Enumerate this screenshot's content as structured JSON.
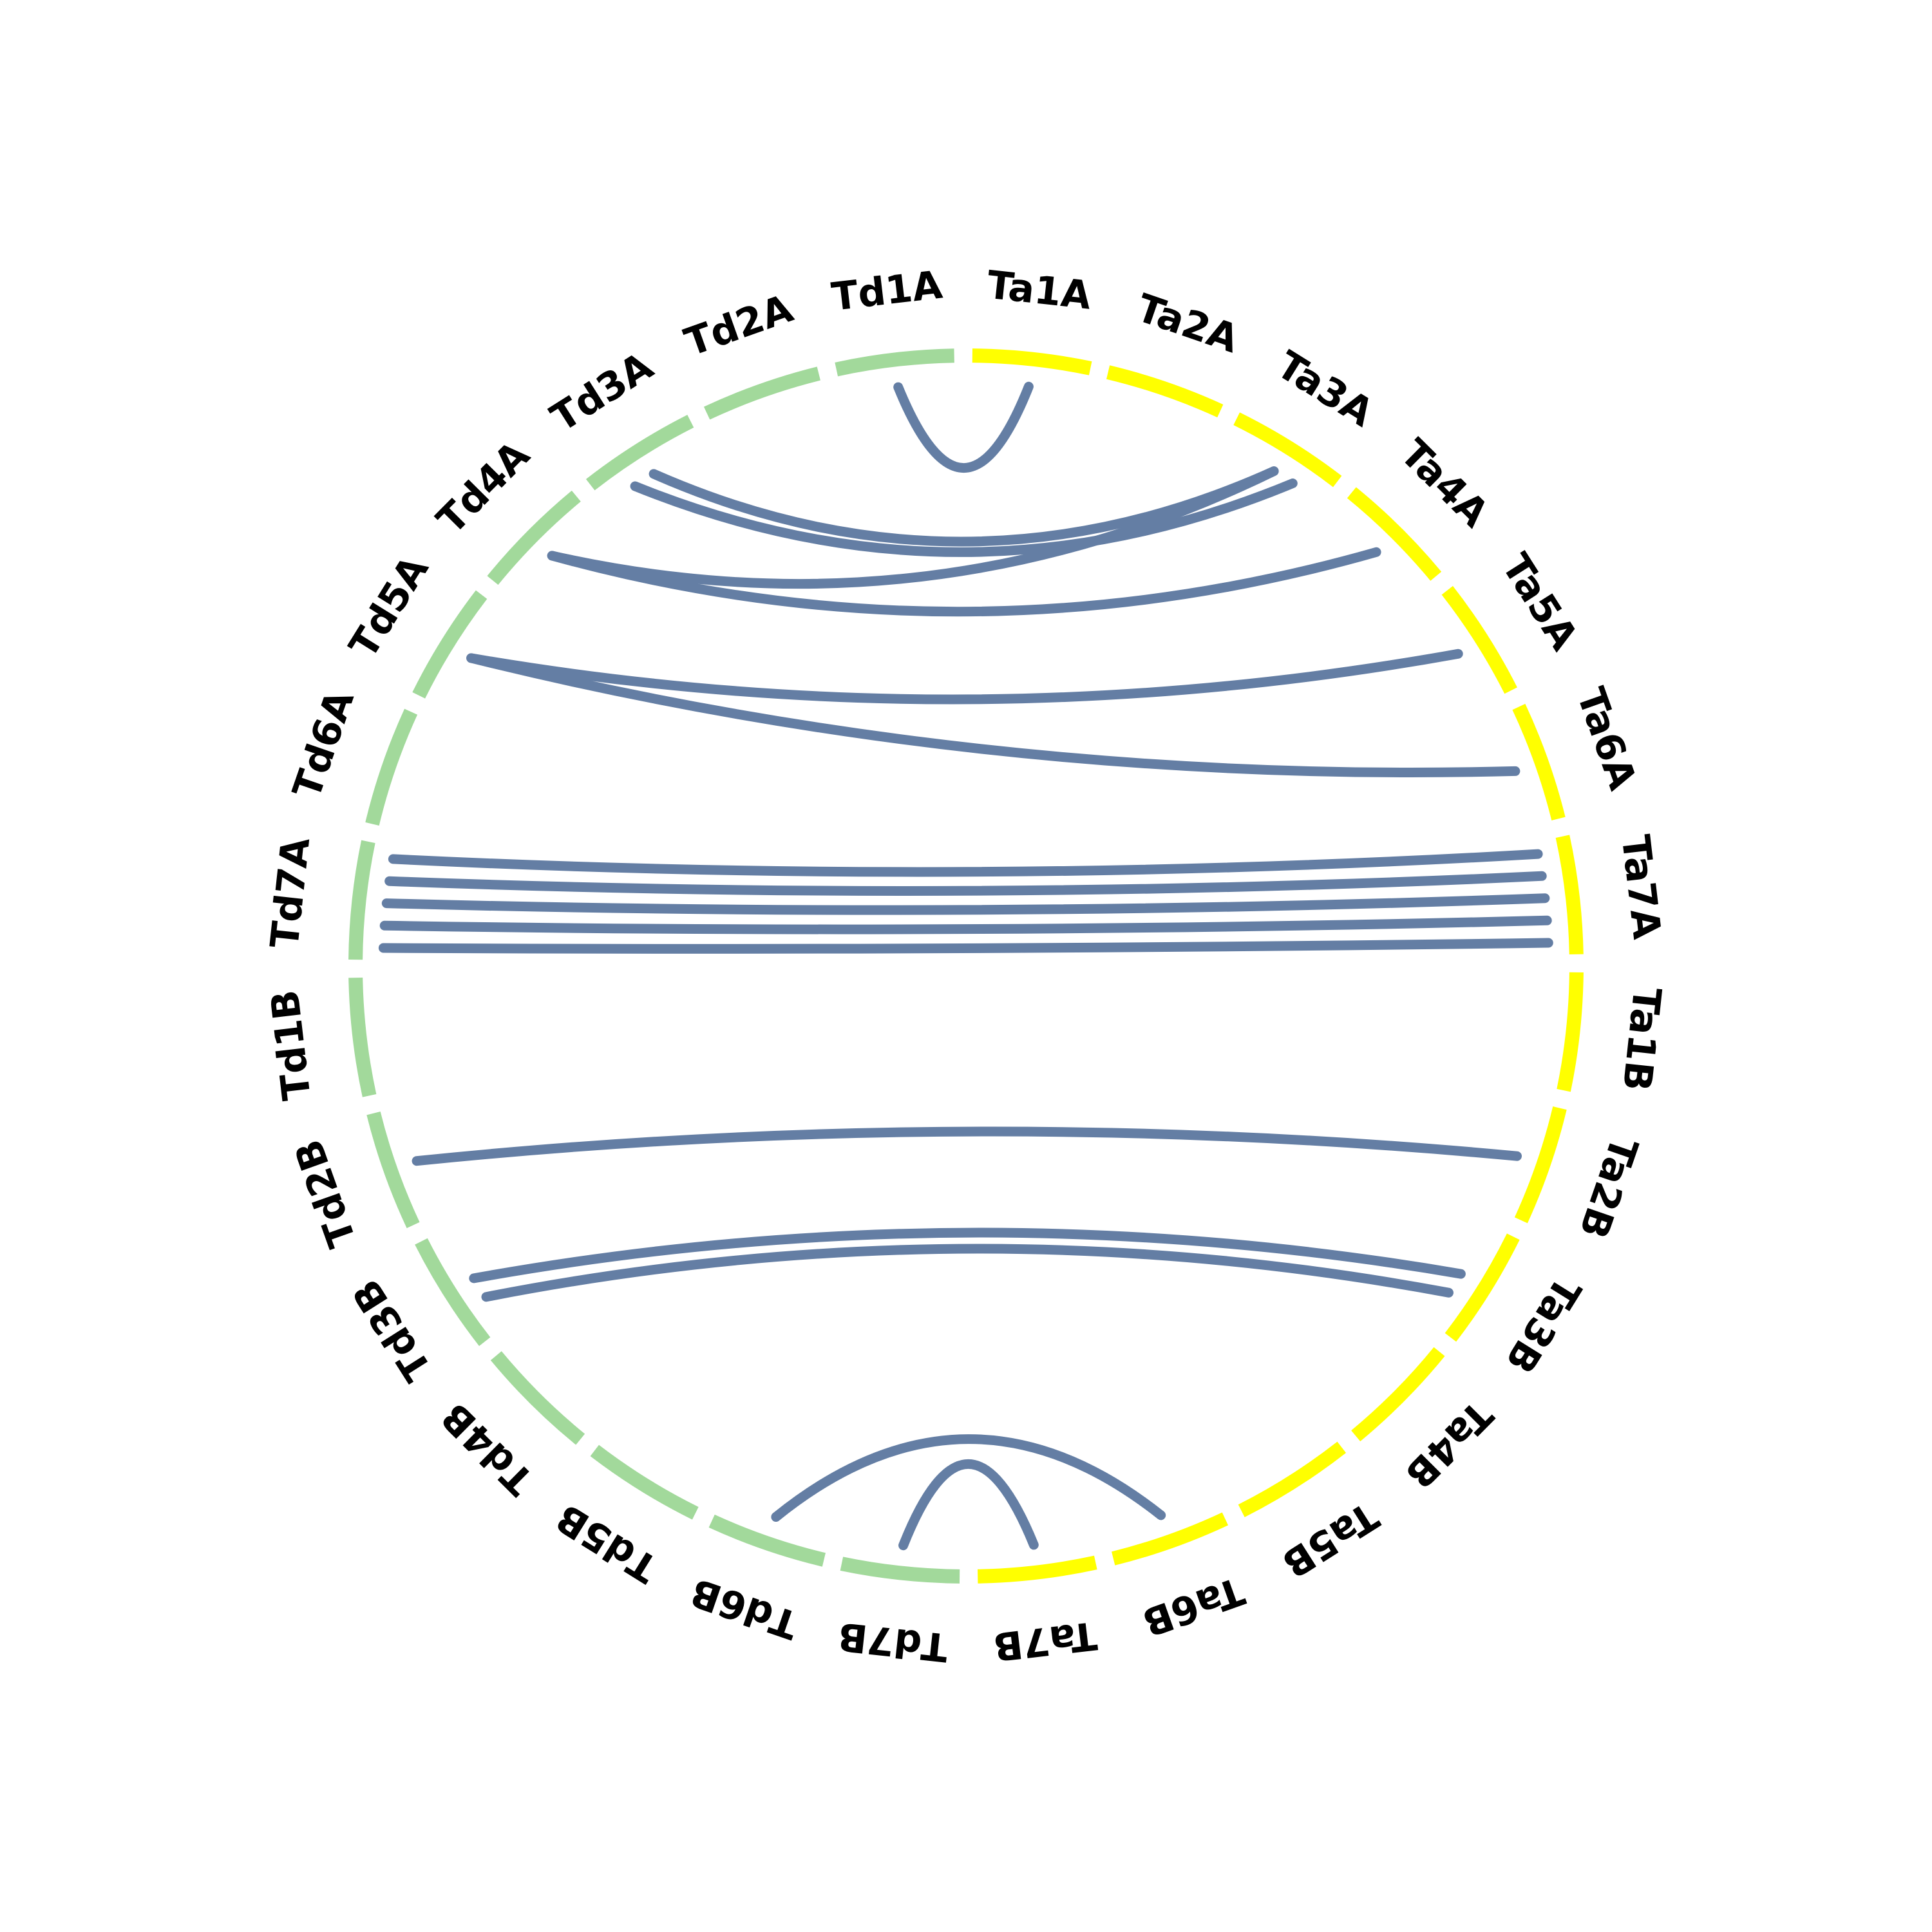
{
  "colors": {
    "td": "#a2d99b",
    "ta": "#ffff00",
    "link": "#647ea4"
  },
  "chromosomes": [
    {
      "label": "Ta1A",
      "group": "ta"
    },
    {
      "label": "Ta2A",
      "group": "ta"
    },
    {
      "label": "Ta3A",
      "group": "ta"
    },
    {
      "label": "Ta4A",
      "group": "ta"
    },
    {
      "label": "Ta5A",
      "group": "ta"
    },
    {
      "label": "Ta6A",
      "group": "ta"
    },
    {
      "label": "Ta7A",
      "group": "ta"
    },
    {
      "label": "Ta1B",
      "group": "ta"
    },
    {
      "label": "Ta2B",
      "group": "ta"
    },
    {
      "label": "Ta3B",
      "group": "ta"
    },
    {
      "label": "Ta4B",
      "group": "ta"
    },
    {
      "label": "Ta5B",
      "group": "ta"
    },
    {
      "label": "Ta6B",
      "group": "ta"
    },
    {
      "label": "Ta7B",
      "group": "ta"
    },
    {
      "label": "Td7B",
      "group": "td"
    },
    {
      "label": "Td6B",
      "group": "td"
    },
    {
      "label": "Td5B",
      "group": "td"
    },
    {
      "label": "Td4B",
      "group": "td"
    },
    {
      "label": "Td3B",
      "group": "td"
    },
    {
      "label": "Td2B",
      "group": "td"
    },
    {
      "label": "Td1B",
      "group": "td"
    },
    {
      "label": "Td7A",
      "group": "td"
    },
    {
      "label": "Td6A",
      "group": "td"
    },
    {
      "label": "Td5A",
      "group": "td"
    },
    {
      "label": "Td4A",
      "group": "td"
    },
    {
      "label": "Td3A",
      "group": "td"
    },
    {
      "label": "Td2A",
      "group": "td"
    },
    {
      "label": "Td1A",
      "group": "td"
    }
  ],
  "links": [
    {
      "from": "Td1A",
      "to": "Ta1A"
    },
    {
      "from": "Td3A",
      "to": "Ta3A"
    },
    {
      "from": "Td3A",
      "to": "Ta3A"
    },
    {
      "from": "Td4A",
      "to": "Ta3A"
    },
    {
      "from": "Td4A",
      "to": "Ta4A"
    },
    {
      "from": "Td5A",
      "to": "Ta5A"
    },
    {
      "from": "Td5A",
      "to": "Ta6A"
    },
    {
      "from": "Td7A",
      "to": "Ta7A"
    },
    {
      "from": "Td7A",
      "to": "Ta7A"
    },
    {
      "from": "Td7A",
      "to": "Ta7A"
    },
    {
      "from": "Td7A",
      "to": "Ta7A"
    },
    {
      "from": "Td7A",
      "to": "Ta7A"
    },
    {
      "from": "Td2B",
      "to": "Ta2B"
    },
    {
      "from": "Td3B",
      "to": "Ta3B"
    },
    {
      "from": "Td3B",
      "to": "Ta3B"
    },
    {
      "from": "Td6B",
      "to": "Ta6B"
    },
    {
      "from": "Td7B",
      "to": "Ta7B"
    }
  ]
}
